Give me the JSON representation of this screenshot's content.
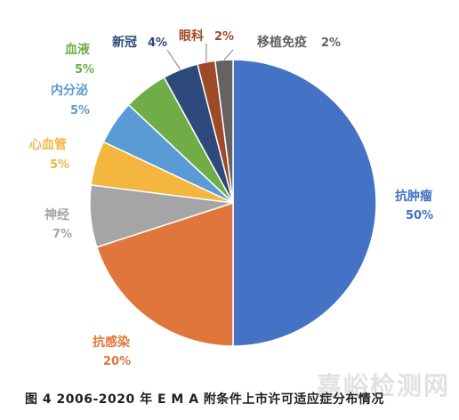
{
  "chart_data": {
    "type": "pie",
    "slices": [
      {
        "label": "抗肿瘤",
        "value_label": "50%",
        "value": 50,
        "color": "#4472c4"
      },
      {
        "label": "抗感染",
        "value_label": "20%",
        "value": 20,
        "color": "#e0763c"
      },
      {
        "label": "神经",
        "value_label": "7%",
        "value": 7,
        "color": "#a5a5a5"
      },
      {
        "label": "心血管",
        "value_label": "5%",
        "value": 5,
        "color": "#f4b63f"
      },
      {
        "label": "内分泌",
        "value_label": "5%",
        "value": 5,
        "color": "#5b9bd5"
      },
      {
        "label": "血液",
        "value_label": "5%",
        "value": 5,
        "color": "#70ad47"
      },
      {
        "label": "新冠",
        "value_label": "4%",
        "value": 4,
        "color": "#2e4a7d"
      },
      {
        "label": "眼科",
        "value_label": "2%",
        "value": 2,
        "color": "#9e4a26"
      },
      {
        "label": "移植免疫",
        "value_label": "2%",
        "value": 2,
        "color": "#636363"
      }
    ]
  },
  "caption": "图 4  2006-2020 年 E M A 附条件上市许可适应症分布情况",
  "watermark": "嘉峪检测网"
}
